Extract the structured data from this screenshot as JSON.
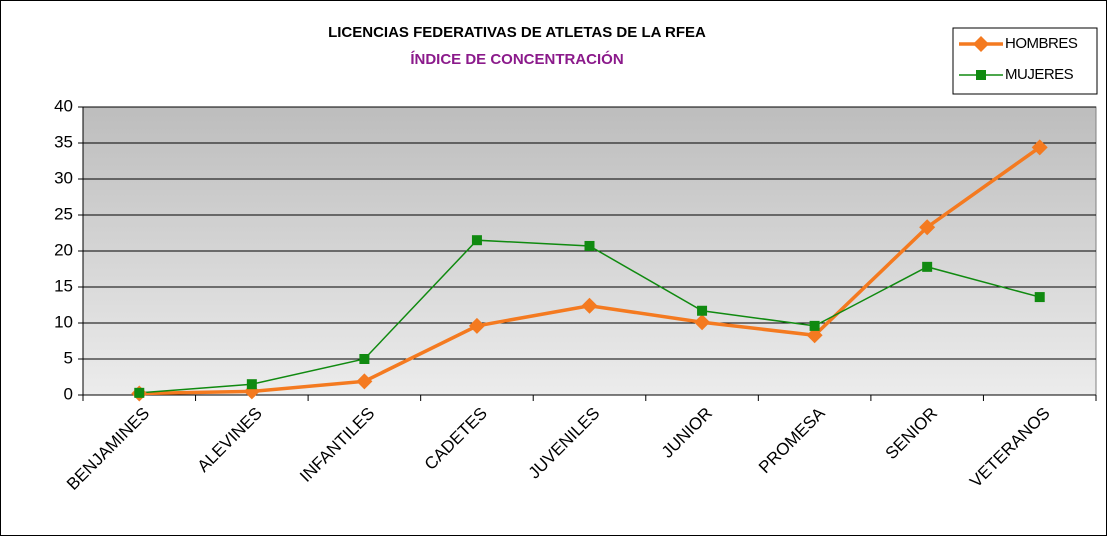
{
  "chart_data": {
    "type": "line",
    "title": "LICENCIAS FEDERATIVAS DE ATLETAS DE LA RFEA",
    "subtitle": "ÍNDICE DE CONCENTRACIÓN",
    "categories": [
      "BENJAMINES",
      "ALEVINES",
      "INFANTILES",
      "CADETES",
      "JUVENILES",
      "JUNIOR",
      "PROMESA",
      "SENIOR",
      "VETERANOS"
    ],
    "series": [
      {
        "name": "HOMBRES",
        "color": "#f47a20",
        "marker": "diamond",
        "values": [
          0.2,
          0.5,
          1.9,
          9.6,
          12.4,
          10.1,
          8.3,
          23.3,
          34.4
        ]
      },
      {
        "name": "MUJERES",
        "color": "#108a10",
        "marker": "square",
        "values": [
          0.3,
          1.5,
          5.0,
          21.5,
          20.7,
          11.7,
          9.6,
          17.8,
          13.6
        ]
      }
    ],
    "ylim": [
      0,
      40
    ],
    "yticks": [
      0,
      5,
      10,
      15,
      20,
      25,
      30,
      35,
      40
    ],
    "grid": true,
    "legend": "top-right"
  }
}
